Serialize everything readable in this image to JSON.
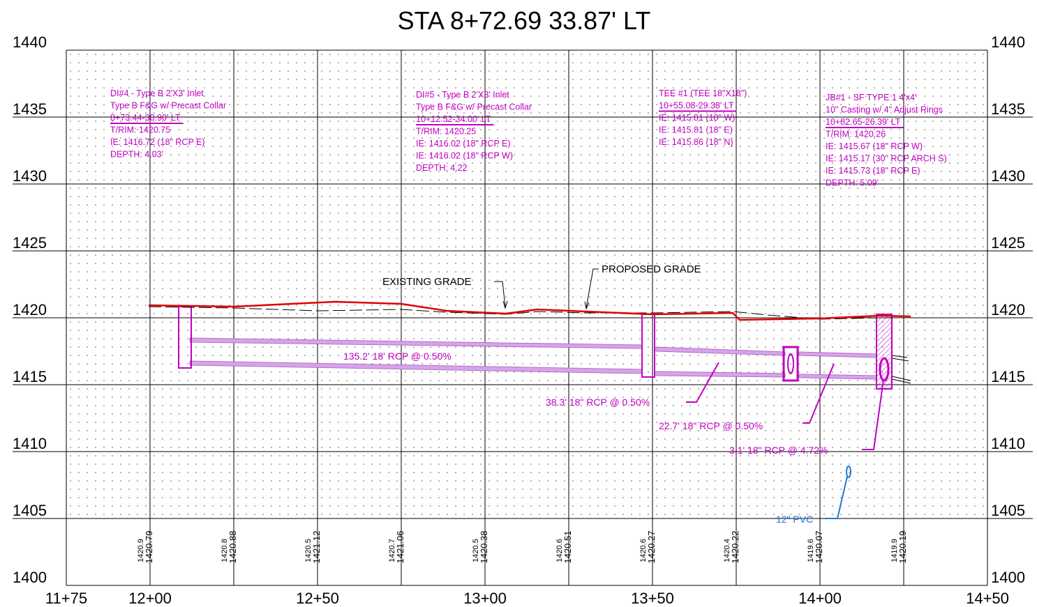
{
  "title": "STA 8+72.69 33.87' LT",
  "y_labels": [
    "1440",
    "1435",
    "1430",
    "1425",
    "1420",
    "1415",
    "1410",
    "1405",
    "1400"
  ],
  "x_labels": [
    "11+75",
    "12+00",
    "12+50",
    "13+00",
    "13+50",
    "14+00",
    "14+50"
  ],
  "station_labels": [
    {
      "existing": "1420.9",
      "proposed": "1420.79"
    },
    {
      "existing": "1420.8",
      "proposed": "1420.88"
    },
    {
      "existing": "1420.5",
      "proposed": "1421.12"
    },
    {
      "existing": "1420.7",
      "proposed": "1421.06"
    },
    {
      "existing": "1420.5",
      "proposed": "1420.38"
    },
    {
      "existing": "1420.6",
      "proposed": "1420.51"
    },
    {
      "existing": "1420.6",
      "proposed": "1420.27"
    },
    {
      "existing": "1420.4",
      "proposed": "1420.22"
    },
    {
      "existing": "1419.6",
      "proposed": "1420.07"
    },
    {
      "existing": "1419.9",
      "proposed": "1420.19"
    }
  ],
  "structures": [
    {
      "lines": [
        "DI#4 - Type B 2'X3' Inlet",
        "Type B F&G w/ Precast Collar",
        "8+73.44-30.90' LT",
        "T/RIM: 1420.75",
        "IE: 1416.72 (18\" RCP E)",
        "DEPTH: 4.03'"
      ]
    },
    {
      "lines": [
        "DI#5 - Type B 2'X3' Inlet",
        "Type B F&G w/ Precast Collar",
        "10+12.52-34.00' LT",
        "T/RIM: 1420.25",
        "IE: 1416.02 (18\" RCP E)",
        "IE: 1416.02 (18\" RCP W)",
        "DEPTH: 4.22"
      ]
    },
    {
      "lines": [
        "TEE #1 (TEE 18\"X18\")",
        "10+55.08-29.38' LT",
        "IE: 1415.81 (18\" W)",
        "IE: 1415.81 (18\" E)",
        "IE: 1415.86 (18\" N)"
      ]
    },
    {
      "lines": [
        "JB#1 - SF TYPE 1 4'x4'",
        "10\" Casting w/ 4\" Adjust Rings",
        "10+82.65-26.39' LT",
        "T/RIM: 1420.26",
        "IE: 1415.67 (18\" RCP W)",
        "IE: 1415.17 (30\" RCP ARCH S)",
        "IE: 1415.73 (18\" RCP E)",
        "DEPTH: 5.09'"
      ]
    }
  ],
  "pipe_labels": [
    "135.2' 18' RCP @ 0.50%",
    "38.3' 18\" RCP @ 0.50%",
    "22.7' 18\" RCP @ 0.50%",
    "3.1' 18\" RCP @ 4.72%"
  ],
  "pvc_label": "12\" PVC",
  "existing_grade_label": "EXISTING GRADE",
  "proposed_grade_label": "PROPOSED GRADE"
}
